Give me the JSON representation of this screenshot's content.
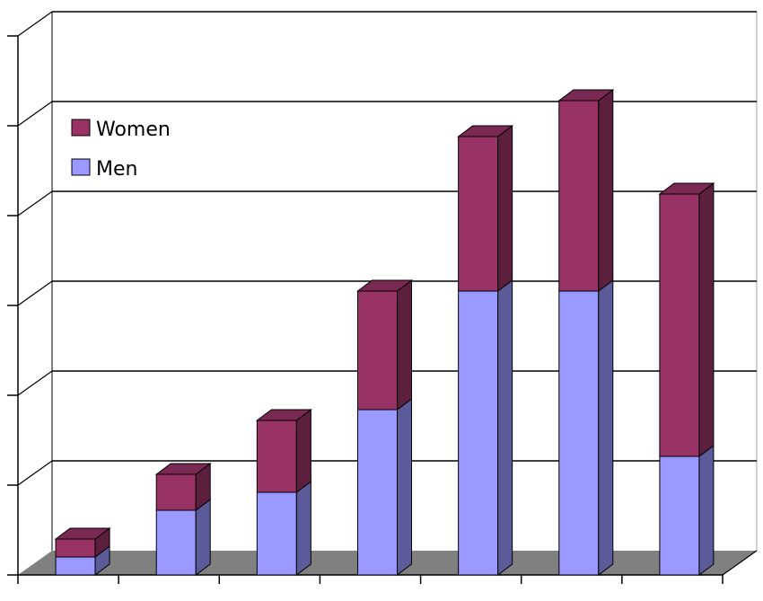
{
  "chart_data": {
    "type": "bar",
    "stacked": true,
    "three_d": true,
    "categories": [
      "",
      "",
      "",
      "",
      "",
      "",
      ""
    ],
    "series": [
      {
        "name": "Men",
        "color": "#9999ff",
        "values": [
          1.0,
          3.6,
          4.6,
          9.2,
          15.8,
          15.8,
          6.6
        ]
      },
      {
        "name": "Women",
        "color": "#993366",
        "values": [
          1.0,
          2.0,
          4.0,
          6.6,
          8.6,
          10.6,
          14.6
        ]
      }
    ],
    "ylim": [
      0,
      30
    ],
    "grid": true,
    "legend_position": "top-left",
    "title": "",
    "xlabel": "",
    "ylabel": ""
  }
}
